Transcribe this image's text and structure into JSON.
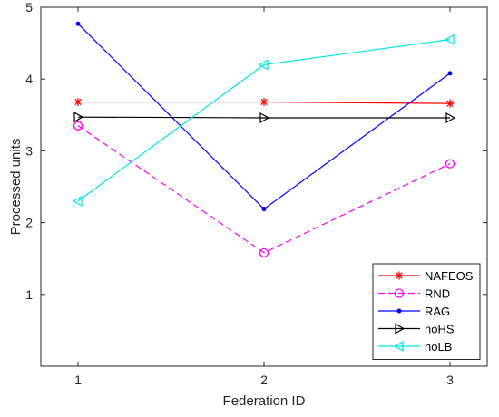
{
  "chart_data": {
    "type": "line",
    "x": [
      1,
      2,
      3
    ],
    "xlabel": "Federation ID",
    "ylabel": "Processed units",
    "xlim": [
      0.8,
      3.2
    ],
    "ylim": [
      0,
      5
    ],
    "xticks": [
      "1",
      "2",
      "3"
    ],
    "yticks": [
      "1",
      "2",
      "3",
      "4",
      "5"
    ],
    "grid": false,
    "legend_position": "bottom-right",
    "series": [
      {
        "name": "NAFEOS",
        "values": [
          3.68,
          3.68,
          3.66
        ],
        "color": "#ff0000",
        "marker": "asterisk",
        "line_style": "solid"
      },
      {
        "name": "RND",
        "values": [
          3.35,
          1.58,
          2.82
        ],
        "color": "#ff00ff",
        "marker": "circle",
        "line_style": "dashed"
      },
      {
        "name": "RAG",
        "values": [
          4.77,
          2.19,
          4.08
        ],
        "color": "#0000ff",
        "marker": "dot",
        "line_style": "solid"
      },
      {
        "name": "noHS",
        "values": [
          3.47,
          3.46,
          3.46
        ],
        "color": "#000000",
        "marker": "triangle-right",
        "line_style": "solid"
      },
      {
        "name": "noLB",
        "values": [
          2.3,
          4.2,
          4.55
        ],
        "color": "#00e5e5",
        "marker": "triangle-left",
        "line_style": "solid"
      }
    ]
  }
}
